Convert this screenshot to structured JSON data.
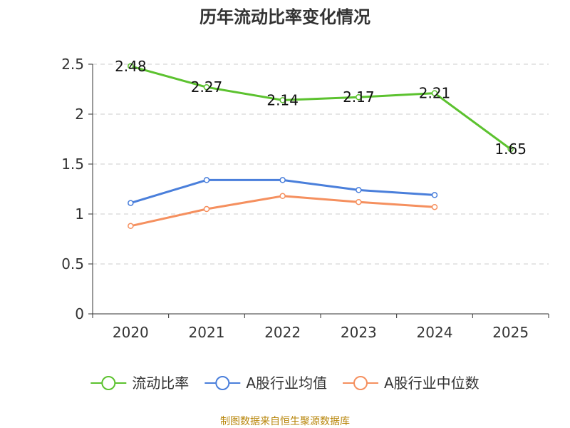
{
  "chart_data": {
    "type": "line",
    "title": "历年流动比率变化情况",
    "categories": [
      "2020",
      "2021",
      "2022",
      "2023",
      "2024",
      "2025"
    ],
    "ylim": [
      0,
      2.5
    ],
    "yticks": [
      "0",
      "0.5",
      "1",
      "1.5",
      "2",
      "2.5"
    ],
    "grid": true,
    "legend_position": "bottom",
    "series": [
      {
        "name": "流动比率",
        "color": "#5cc22f",
        "values": [
          2.48,
          2.27,
          2.14,
          2.17,
          2.21,
          1.65
        ],
        "labels": [
          "2.48",
          "2.27",
          "2.14",
          "2.17",
          "2.21",
          "1.65"
        ]
      },
      {
        "name": "A股行业均值",
        "color": "#4a7fdb",
        "values": [
          1.11,
          1.34,
          1.34,
          1.24,
          1.19,
          null
        ]
      },
      {
        "name": "A股行业中位数",
        "color": "#f5905f",
        "values": [
          0.88,
          1.05,
          1.18,
          1.12,
          1.07,
          null
        ]
      }
    ]
  },
  "source": "制图数据来自恒生聚源数据库"
}
